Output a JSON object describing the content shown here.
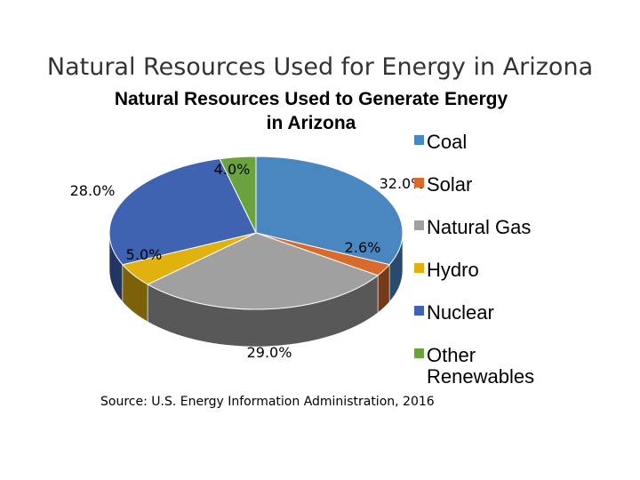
{
  "slide": {
    "title": "Natural Resources Used for Energy in Arizona",
    "source": "Source: U.S. Energy Information Administration, 2016"
  },
  "chart_data": {
    "type": "pie",
    "style": "3d",
    "title": "Natural Resources Used to Generate Energy in Arizona",
    "legend_position": "right",
    "categories": [
      "Coal",
      "Solar",
      "Natural Gas",
      "Hydro",
      "Nuclear",
      "Other Renewables"
    ],
    "values": [
      32.0,
      2.6,
      29.0,
      5.0,
      28.0,
      4.0
    ],
    "data_labels": [
      "32.0%",
      "2.6%",
      "29.0%",
      "5.0%",
      "28.0%",
      "4.0%"
    ],
    "colors": [
      "#4a86c0",
      "#d86a2c",
      "#a0a0a0",
      "#e1b10e",
      "#3f63b0",
      "#6ba23e"
    ]
  }
}
